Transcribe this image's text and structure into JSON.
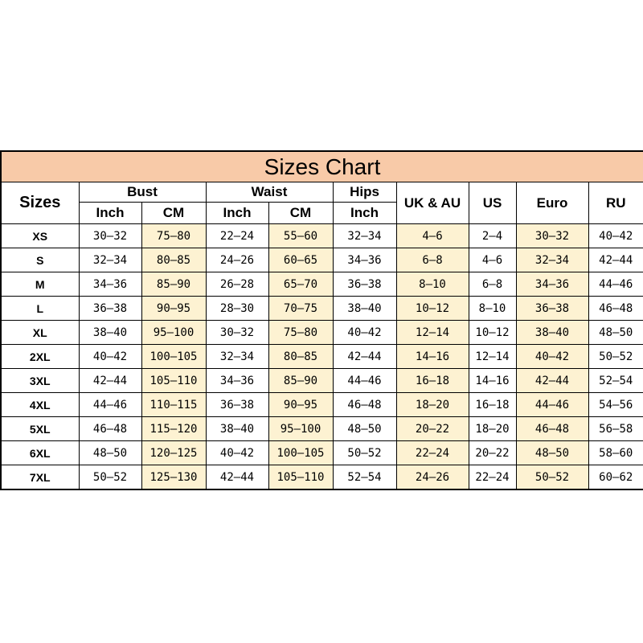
{
  "title": "Sizes Chart",
  "header": {
    "sizes": "Sizes",
    "bust": "Bust",
    "waist": "Waist",
    "hips": "Hips",
    "uk_au": "UK & AU",
    "us": "US",
    "euro": "Euro",
    "ru": "RU",
    "units": [
      "Inch",
      "CM",
      "Inch",
      "CM",
      "Inch"
    ]
  },
  "rows": [
    [
      "XS",
      "30–32",
      "75–80",
      "22–24",
      "55–60",
      "32–34",
      "4–6",
      "2–4",
      "30–32",
      "40–42"
    ],
    [
      "S",
      "32–34",
      "80–85",
      "24–26",
      "60–65",
      "34–36",
      "6–8",
      "4–6",
      "32–34",
      "42–44"
    ],
    [
      "M",
      "34–36",
      "85–90",
      "26–28",
      "65–70",
      "36–38",
      "8–10",
      "6–8",
      "34–36",
      "44–46"
    ],
    [
      "L",
      "36–38",
      "90–95",
      "28–30",
      "70–75",
      "38–40",
      "10–12",
      "8–10",
      "36–38",
      "46–48"
    ],
    [
      "XL",
      "38–40",
      "95–100",
      "30–32",
      "75–80",
      "40–42",
      "12–14",
      "10–12",
      "38–40",
      "48–50"
    ],
    [
      "2XL",
      "40–42",
      "100–105",
      "32–34",
      "80–85",
      "42–44",
      "14–16",
      "12–14",
      "40–42",
      "50–52"
    ],
    [
      "3XL",
      "42–44",
      "105–110",
      "34–36",
      "85–90",
      "44–46",
      "16–18",
      "14–16",
      "42–44",
      "52–54"
    ],
    [
      "4XL",
      "44–46",
      "110–115",
      "36–38",
      "90–95",
      "46–48",
      "18–20",
      "16–18",
      "44–46",
      "54–56"
    ],
    [
      "5XL",
      "46–48",
      "115–120",
      "38–40",
      "95–100",
      "48–50",
      "20–22",
      "18–20",
      "46–48",
      "56–58"
    ],
    [
      "6XL",
      "48–50",
      "120–125",
      "40–42",
      "100–105",
      "50–52",
      "22–24",
      "20–22",
      "48–50",
      "58–60"
    ],
    [
      "7XL",
      "50–52",
      "125–130",
      "42–44",
      "105–110",
      "52–54",
      "24–26",
      "22–24",
      "50–52",
      "60–62"
    ]
  ]
}
